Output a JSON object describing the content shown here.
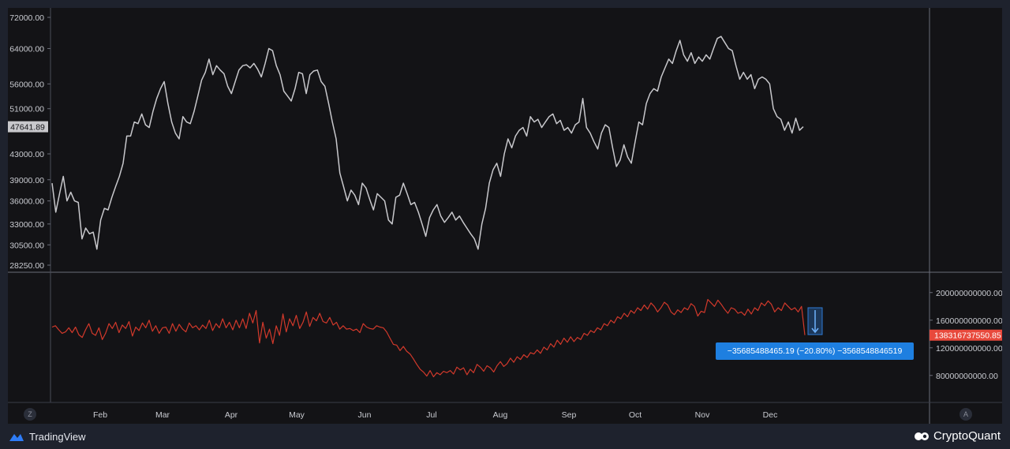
{
  "colors": {
    "background": "#131316",
    "price_line": "#c8c8cc",
    "indicator_line": "#d2392b",
    "indicator_label_bg": "#e8493c",
    "price_label_bg": "#c8c8cc",
    "tooltip_bg": "#1e7fe0",
    "measure_box": "#2e7bd6"
  },
  "footer": {
    "tradingview_label": "TradingView",
    "cryptoquant_label": "CryptoQuant",
    "zoom_reset_label": "Z",
    "auto_scale_label": "A"
  },
  "measure_tooltip": {
    "text": "−35685488465.19 (−20.80%) −35685488​46519"
  },
  "chart_data": [
    {
      "type": "line",
      "series": [
        {
          "values": [
            38500,
            34500,
            37000,
            39500,
            36000,
            37200,
            36000,
            35800,
            31200,
            32500,
            31800,
            32000,
            30000,
            33500,
            35000,
            34800,
            36500,
            38000,
            39500,
            41500,
            46000,
            46000,
            48500,
            48200,
            50000,
            48000,
            47500,
            50500,
            53000,
            55000,
            56500,
            52000,
            48500,
            46500,
            45500,
            49500,
            48500,
            48200,
            50500,
            53500,
            56800,
            58500,
            61500,
            58000,
            60000,
            59000,
            58200,
            55500,
            54000,
            56500,
            59000,
            60000,
            60200,
            59500,
            60500,
            59200,
            57500,
            60500,
            64000,
            63500,
            60000,
            58000,
            54500,
            53500,
            52500,
            55000,
            58500,
            58200,
            54000,
            58000,
            58800,
            59000,
            56500,
            55500,
            52000,
            48500,
            45500,
            40000,
            38000,
            36000,
            37500,
            36800,
            35500,
            38500,
            37800,
            36200,
            34800,
            37000,
            36500,
            36000,
            33500,
            33000,
            36500,
            36800,
            38500,
            37000,
            35500,
            35800,
            34500,
            33000,
            31500,
            33800,
            34800,
            35500,
            34000,
            33200,
            33800,
            34500,
            33500,
            34000,
            33200,
            32500,
            31800,
            31200,
            30000,
            33000,
            35000,
            38500,
            40500,
            41500,
            39500,
            43000,
            45500,
            44000,
            46000,
            47000,
            47500,
            46000,
            49500,
            48500,
            49000,
            47500,
            48500,
            49500,
            50000,
            48200,
            48800,
            47000,
            47500,
            46500,
            48000,
            48500,
            53000,
            47500,
            46500,
            45000,
            43800,
            46500,
            48000,
            47500,
            44000,
            41000,
            42000,
            44500,
            42500,
            41500,
            45000,
            48500,
            48000,
            52000,
            54000,
            55000,
            54500,
            57500,
            59500,
            61500,
            60500,
            63500,
            66000,
            62500,
            61000,
            63000,
            60500,
            62000,
            61000,
            62500,
            61500,
            64000,
            66500,
            67000,
            65500,
            64000,
            63500,
            60000,
            57000,
            58500,
            57000,
            58000,
            55000,
            57000,
            57500,
            57000,
            56000,
            51000,
            49500,
            49000,
            47000,
            48500,
            46500,
            49200,
            47000,
            47641.89
          ]
        }
      ],
      "y_axis_ticks": [
        "72000.00",
        "64000.00",
        "56000.00",
        "51000.00",
        "47641.89",
        "43000.00",
        "39000.00",
        "36000.00",
        "33000.00",
        "30500.00",
        "28250.00"
      ],
      "last_value_label": "47641.89",
      "y_scale": "log",
      "ylim": [
        28250,
        72000
      ]
    },
    {
      "type": "line",
      "series": [
        {
          "values": [
            150,
            152,
            146,
            141,
            143,
            149,
            142,
            150,
            139,
            135,
            146,
            155,
            141,
            138,
            149,
            132,
            141,
            155,
            148,
            157,
            142,
            153,
            148,
            158,
            137,
            150,
            145,
            156,
            149,
            160,
            144,
            152,
            141,
            149,
            150,
            141,
            155,
            144,
            154,
            147,
            143,
            156,
            149,
            152,
            146,
            153,
            148,
            160,
            145,
            155,
            149,
            162,
            149,
            157,
            146,
            160,
            149,
            162,
            148,
            170,
            156,
            174,
            127,
            157,
            134,
            147,
            126,
            152,
            138,
            169,
            143,
            162,
            152,
            167,
            148,
            157,
            172,
            151,
            164,
            159,
            170,
            158,
            156,
            164,
            153,
            157,
            147,
            152,
            147,
            148,
            145,
            147,
            142,
            155,
            150,
            148,
            147,
            152,
            150,
            149,
            143,
            134,
            125,
            124,
            116,
            122,
            115,
            111,
            104,
            96,
            89,
            85,
            79,
            87,
            78,
            84,
            81,
            86,
            84,
            87,
            82,
            92,
            88,
            91,
            81,
            89,
            84,
            96,
            92,
            86,
            94,
            91,
            85,
            94,
            100,
            93,
            97,
            105,
            99,
            107,
            103,
            110,
            106,
            113,
            111,
            117,
            112,
            121,
            117,
            126,
            121,
            131,
            125,
            134,
            128,
            136,
            129,
            135,
            132,
            141,
            138,
            145,
            142,
            149,
            146,
            155,
            152,
            160,
            156,
            165,
            162,
            170,
            165,
            174,
            170,
            178,
            174,
            182,
            176,
            185,
            180,
            172,
            178,
            186,
            182,
            172,
            168,
            175,
            171,
            178,
            175,
            184,
            180,
            166,
            173,
            171,
            190,
            185,
            180,
            189,
            183,
            176,
            170,
            178,
            176,
            170,
            172,
            167,
            176,
            169,
            178,
            174,
            185,
            181,
            188,
            183,
            172,
            178,
            174,
            185,
            180,
            175,
            178,
            172,
            180,
            138.316737
          ]
        }
      ],
      "y_axis_ticks": [
        "200000000000.00",
        "160000000000.00",
        "120000000000.00",
        "80000000000.00"
      ],
      "last_value_label": "138316737550.85",
      "ylim": [
        50000000000,
        210000000000
      ]
    }
  ],
  "x_axis": {
    "month_labels": [
      "Feb",
      "Mar",
      "Apr",
      "May",
      "Jun",
      "Jul",
      "Aug",
      "Sep",
      "Oct",
      "Nov",
      "Dec"
    ]
  }
}
